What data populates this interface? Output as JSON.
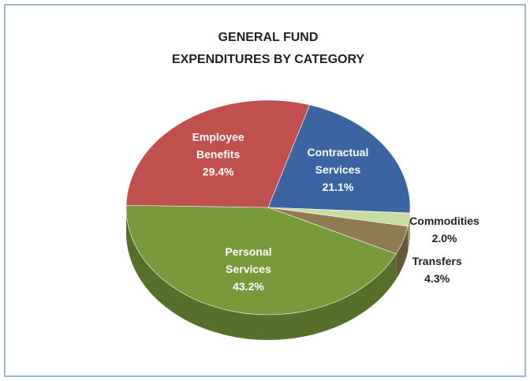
{
  "chart_data": {
    "type": "pie3d",
    "title": [
      "GENERAL FUND",
      "EXPENDITURES BY CATEGORY"
    ],
    "categories": [
      [
        "Contractual",
        "Services"
      ],
      [
        "Commodities"
      ],
      [
        "Transfers"
      ],
      [
        "Personal",
        "Services"
      ],
      [
        "Employee",
        "Benefits"
      ]
    ],
    "values": [
      21.1,
      2.0,
      4.3,
      43.2,
      29.4
    ],
    "value_labels": [
      "21.1%",
      "2.0%",
      "4.3%",
      "43.2%",
      "29.4%"
    ],
    "colors": [
      "#3d64a2",
      "#c9dca2",
      "#8e7b52",
      "#789a3b",
      "#c0504d"
    ]
  }
}
